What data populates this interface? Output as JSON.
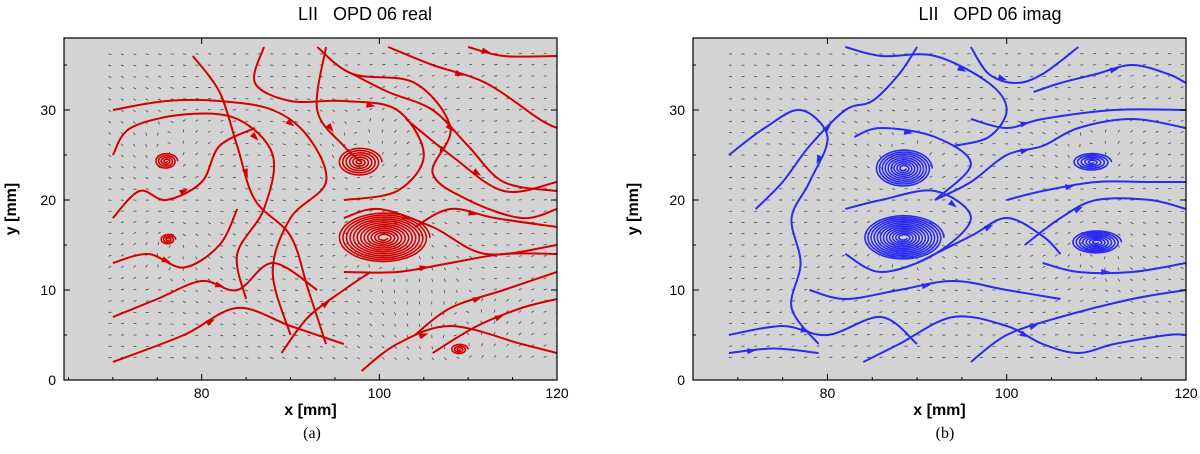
{
  "chart_data": [
    {
      "type": "streamline",
      "title": "LII   OPD 06 real",
      "xlabel": "x [mm]",
      "ylabel": "y [mm]",
      "xlim": [
        64.5,
        120
      ],
      "ylim": [
        0,
        38
      ],
      "xticks": [
        80,
        100,
        120
      ],
      "yticks": [
        0,
        10,
        20,
        30
      ],
      "background": "#d3d3d3",
      "line_color": "#d40000",
      "vector_color": "#3a3a3a",
      "vector_field_region": {
        "x": [
          69.5,
          120
        ],
        "y": [
          2.5,
          36.5
        ]
      },
      "vortex_centers": [
        {
          "x": 76.0,
          "y": 24.3,
          "rx": 1.3,
          "ry": 0.9,
          "turns": 4
        },
        {
          "x": 76.2,
          "y": 15.6,
          "rx": 0.9,
          "ry": 0.6,
          "turns": 3
        },
        {
          "x": 97.8,
          "y": 24.2,
          "rx": 2.5,
          "ry": 1.6,
          "turns": 6
        },
        {
          "x": 100.5,
          "y": 15.8,
          "rx": 5.2,
          "ry": 2.8,
          "turns": 12
        },
        {
          "x": 109.0,
          "y": 3.4,
          "rx": 1.0,
          "ry": 0.6,
          "turns": 3
        }
      ],
      "streamlines": [
        [
          [
            70,
            2
          ],
          [
            78,
            5
          ],
          [
            84,
            8
          ],
          [
            90,
            6
          ],
          [
            96,
            4
          ]
        ],
        [
          [
            70,
            7
          ],
          [
            75,
            9
          ],
          [
            80,
            11
          ],
          [
            84,
            10
          ],
          [
            88,
            13
          ],
          [
            93,
            10
          ]
        ],
        [
          [
            70,
            13
          ],
          [
            74,
            14
          ],
          [
            78,
            12.5
          ],
          [
            82,
            15
          ],
          [
            84,
            19
          ]
        ],
        [
          [
            70,
            18
          ],
          [
            73,
            21
          ],
          [
            76,
            20
          ],
          [
            80,
            22
          ],
          [
            82,
            26
          ],
          [
            86,
            28
          ]
        ],
        [
          [
            70,
            25
          ],
          [
            72,
            28
          ],
          [
            78,
            29.5
          ],
          [
            84,
            29
          ],
          [
            88,
            25
          ],
          [
            87,
            19
          ],
          [
            84,
            14
          ],
          [
            85,
            9
          ]
        ],
        [
          [
            70,
            30
          ],
          [
            76,
            31
          ],
          [
            82,
            31
          ],
          [
            88,
            30
          ],
          [
            92,
            27
          ],
          [
            94,
            22
          ],
          [
            90,
            18
          ],
          [
            88,
            12
          ],
          [
            90,
            5
          ]
        ],
        [
          [
            79,
            36
          ],
          [
            82,
            32
          ],
          [
            84,
            26
          ],
          [
            86,
            20
          ],
          [
            90,
            16
          ],
          [
            92,
            10
          ],
          [
            94,
            4
          ]
        ],
        [
          [
            87,
            37
          ],
          [
            86,
            33
          ],
          [
            90,
            31
          ],
          [
            96,
            31
          ],
          [
            102,
            30
          ],
          [
            105,
            25
          ],
          [
            102,
            21
          ],
          [
            96,
            20
          ]
        ],
        [
          [
            93,
            37
          ],
          [
            97,
            34
          ],
          [
            104,
            33
          ],
          [
            108,
            28
          ],
          [
            106,
            23
          ],
          [
            110,
            20
          ],
          [
            116,
            18
          ],
          [
            120,
            19
          ]
        ],
        [
          [
            101,
            37
          ],
          [
            106,
            35
          ],
          [
            112,
            33
          ],
          [
            118,
            29
          ],
          [
            120,
            28
          ]
        ],
        [
          [
            110,
            37
          ],
          [
            114,
            36
          ],
          [
            120,
            36
          ]
        ],
        [
          [
            97,
            34
          ],
          [
            101,
            32
          ],
          [
            106,
            30
          ],
          [
            110,
            26
          ],
          [
            114,
            22
          ],
          [
            120,
            21
          ]
        ],
        [
          [
            103,
            29
          ],
          [
            108,
            25
          ],
          [
            114,
            21
          ],
          [
            120,
            22
          ]
        ],
        [
          [
            104,
            17
          ],
          [
            108,
            19
          ],
          [
            113,
            18
          ],
          [
            120,
            17
          ]
        ],
        [
          [
            96,
            18
          ],
          [
            100,
            19
          ],
          [
            106,
            17
          ],
          [
            112,
            14
          ],
          [
            120,
            15
          ]
        ],
        [
          [
            96,
            12
          ],
          [
            102,
            12
          ],
          [
            108,
            13
          ],
          [
            114,
            14
          ],
          [
            120,
            14
          ]
        ],
        [
          [
            104,
            5
          ],
          [
            108,
            8
          ],
          [
            114,
            10
          ],
          [
            120,
            12
          ]
        ],
        [
          [
            106,
            3
          ],
          [
            111,
            6
          ],
          [
            116,
            8
          ],
          [
            120,
            9
          ]
        ],
        [
          [
            89,
            3
          ],
          [
            92,
            7
          ],
          [
            96,
            10
          ],
          [
            99,
            12
          ]
        ],
        [
          [
            98,
            1
          ],
          [
            102,
            4
          ],
          [
            108,
            6
          ],
          [
            116,
            4
          ],
          [
            120,
            3
          ]
        ],
        [
          [
            94,
            37
          ],
          [
            93,
            30
          ],
          [
            96,
            26
          ],
          [
            98,
            24.2
          ]
        ]
      ]
    },
    {
      "type": "streamline",
      "title": "LII   OPD 06 imag",
      "xlabel": "x [mm]",
      "ylabel": "y [mm]",
      "xlim": [
        65,
        120
      ],
      "ylim": [
        0,
        38
      ],
      "xticks": [
        80,
        100,
        120
      ],
      "yticks": [
        0,
        10,
        20,
        30
      ],
      "background": "#d3d3d3",
      "line_color": "#2a2af0",
      "vector_color": "#3a3a3a",
      "vector_field_region": {
        "x": [
          69,
          120
        ],
        "y": [
          2.5,
          36.5
        ]
      },
      "vortex_centers": [
        {
          "x": 88.5,
          "y": 23.5,
          "rx": 3.2,
          "ry": 2.1,
          "turns": 9
        },
        {
          "x": 88.5,
          "y": 15.8,
          "rx": 4.5,
          "ry": 2.5,
          "turns": 12
        },
        {
          "x": 109.5,
          "y": 24.2,
          "rx": 2.2,
          "ry": 1.0,
          "turns": 5
        },
        {
          "x": 110.0,
          "y": 15.3,
          "rx": 2.8,
          "ry": 1.3,
          "turns": 7
        }
      ],
      "streamlines": [
        [
          [
            69,
            25
          ],
          [
            73,
            28
          ],
          [
            77,
            30
          ],
          [
            80,
            27
          ],
          [
            78,
            22
          ],
          [
            76,
            18
          ],
          [
            77,
            13
          ],
          [
            76,
            8
          ],
          [
            79,
            4
          ]
        ],
        [
          [
            72,
            19
          ],
          [
            75,
            22
          ],
          [
            78,
            26
          ],
          [
            82,
            30
          ],
          [
            85,
            31
          ],
          [
            88,
            34
          ],
          [
            90,
            37
          ]
        ],
        [
          [
            82,
            37
          ],
          [
            86,
            36
          ],
          [
            92,
            36
          ],
          [
            98,
            33
          ],
          [
            100,
            30
          ],
          [
            98,
            27
          ],
          [
            94,
            26
          ]
        ],
        [
          [
            96,
            37
          ],
          [
            98,
            34
          ],
          [
            101,
            33
          ],
          [
            104,
            34
          ],
          [
            108,
            37
          ]
        ],
        [
          [
            103,
            32
          ],
          [
            106,
            33
          ],
          [
            110,
            34
          ],
          [
            114,
            35
          ],
          [
            118,
            34
          ],
          [
            120,
            33
          ]
        ],
        [
          [
            69,
            5
          ],
          [
            75,
            6
          ],
          [
            80,
            5
          ],
          [
            86,
            7
          ],
          [
            90,
            4
          ]
        ],
        [
          [
            69,
            3
          ],
          [
            74,
            3.5
          ],
          [
            79,
            3
          ]
        ],
        [
          [
            84,
            2
          ],
          [
            88,
            4
          ],
          [
            94,
            7
          ],
          [
            100,
            6
          ],
          [
            104,
            4
          ],
          [
            108,
            3
          ],
          [
            112,
            4
          ],
          [
            118,
            5
          ],
          [
            120,
            5
          ]
        ],
        [
          [
            96,
            2
          ],
          [
            100,
            5
          ],
          [
            106,
            7
          ],
          [
            114,
            9
          ],
          [
            120,
            10
          ]
        ],
        [
          [
            78,
            10
          ],
          [
            82,
            9
          ],
          [
            88,
            10
          ],
          [
            94,
            11
          ],
          [
            100,
            10
          ],
          [
            106,
            9
          ]
        ],
        [
          [
            104,
            13
          ],
          [
            108,
            12
          ],
          [
            114,
            12
          ],
          [
            120,
            13
          ]
        ],
        [
          [
            92,
            20
          ],
          [
            96,
            22
          ],
          [
            100,
            25
          ],
          [
            104,
            26
          ],
          [
            108,
            28
          ],
          [
            114,
            29
          ],
          [
            120,
            28
          ]
        ],
        [
          [
            96,
            29
          ],
          [
            100,
            28
          ],
          [
            104,
            29
          ],
          [
            112,
            30
          ],
          [
            120,
            30
          ]
        ],
        [
          [
            102,
            15
          ],
          [
            106,
            18
          ],
          [
            110,
            20
          ],
          [
            116,
            20
          ],
          [
            120,
            19
          ]
        ],
        [
          [
            100,
            20
          ],
          [
            104,
            21
          ],
          [
            110,
            22
          ],
          [
            116,
            22
          ],
          [
            120,
            22
          ]
        ],
        [
          [
            90,
            13
          ],
          [
            96,
            16
          ],
          [
            100,
            18
          ],
          [
            104,
            16
          ],
          [
            106,
            14
          ]
        ],
        [
          [
            82,
            19
          ],
          [
            86,
            20
          ],
          [
            92,
            21
          ],
          [
            96,
            18
          ],
          [
            92,
            14
          ],
          [
            86,
            12
          ],
          [
            82,
            14
          ]
        ],
        [
          [
            83,
            27
          ],
          [
            86,
            28
          ],
          [
            92,
            27
          ],
          [
            96,
            24
          ],
          [
            92,
            20
          ]
        ]
      ]
    }
  ],
  "captions": [
    "(a)",
    "(b)"
  ]
}
